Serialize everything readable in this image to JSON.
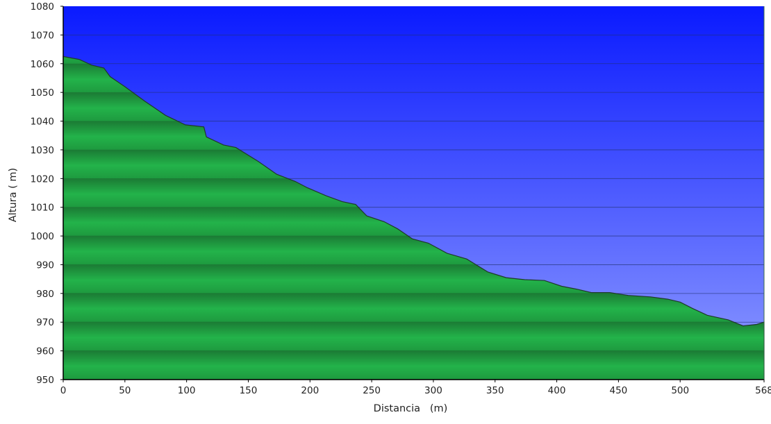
{
  "chart_data": {
    "type": "area",
    "title": "",
    "xlabel": "Distancia   (m)",
    "ylabel": "Altura ( m)",
    "xlim": [
      0,
      568
    ],
    "ylim": [
      950,
      1080
    ],
    "x_ticks": [
      0,
      50,
      100,
      150,
      200,
      250,
      300,
      350,
      400,
      450,
      500,
      568
    ],
    "x_tick_labels": [
      "0",
      "50",
      "100",
      "150",
      "200",
      "250",
      "300",
      "350",
      "400",
      "450",
      "500",
      "568"
    ],
    "y_ticks": [
      950,
      960,
      970,
      980,
      990,
      1000,
      1010,
      1020,
      1030,
      1040,
      1050,
      1060,
      1070,
      1080
    ],
    "y_tick_labels": [
      "950",
      "960",
      "970",
      "980",
      "990",
      "1000",
      "1010",
      "1020",
      "1030",
      "1040",
      "1050",
      "1060",
      "1070",
      "1080"
    ],
    "grid": true,
    "legend": "none",
    "colors": {
      "sky_top": "#0a1aff",
      "sky_bottom": "#8f9cff",
      "fill_dark": "#1b7a34",
      "fill_light": "#23b34a",
      "outline": "#1f3a2a",
      "gridline": "#223070"
    },
    "series": [
      {
        "x": [
          0,
          13,
          23,
          33,
          38,
          50,
          66,
          83,
          99,
          114,
          116,
          130,
          140,
          158,
          173,
          188,
          198,
          213,
          226,
          237,
          246,
          260,
          271,
          283,
          296,
          311,
          327,
          344,
          359,
          374,
          390,
          404,
          416,
          428,
          443,
          458,
          476,
          490,
          500,
          510,
          522,
          539,
          551,
          562,
          568
        ],
        "y": [
          1062.5,
          1061.5,
          1059.5,
          1058.5,
          1055.5,
          1052,
          1047,
          1042,
          1038.7,
          1038,
          1034.5,
          1031.7,
          1030.8,
          1026,
          1021.5,
          1019,
          1016.8,
          1014,
          1012,
          1011,
          1007,
          1005,
          1002.5,
          999,
          997.5,
          994,
          992,
          987.5,
          985.5,
          984.8,
          984.5,
          982.5,
          981.5,
          980.3,
          980.3,
          979.3,
          978.8,
          978,
          977,
          974.8,
          972.4,
          970.8,
          968.7,
          969.2,
          970
        ]
      }
    ]
  }
}
